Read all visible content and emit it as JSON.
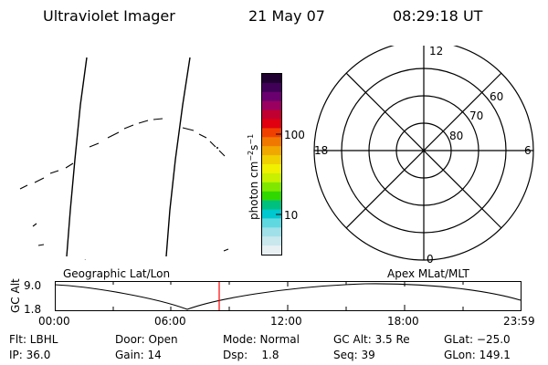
{
  "header": {
    "title": "Ultraviolet Imager",
    "date": "21 May 07",
    "time": "08:29:18 UT"
  },
  "colorbar": {
    "unit_main": "photon cm",
    "unit_exp1": "−2",
    "unit_s": "s",
    "unit_exp2": "−1",
    "tick_100": "100",
    "tick_10": "10",
    "colors": [
      "#200030",
      "#400058",
      "#6a0070",
      "#9a0060",
      "#c00030",
      "#e00010",
      "#f04000",
      "#f07800",
      "#f0a800",
      "#f0d000",
      "#f0f000",
      "#c8f000",
      "#80e800",
      "#30d800",
      "#00c080",
      "#00c8d0",
      "#60d8e0",
      "#a0e0e8",
      "#c8e8ee",
      "#e8f0f4"
    ]
  },
  "polar": {
    "mlt_12": "12",
    "mlt_18": "18",
    "mlt_6": "6",
    "mlt_0": "0",
    "lat_60": "60",
    "lat_70": "70",
    "lat_80": "80"
  },
  "plot": {
    "ylabel": "GC Alt",
    "y_top": "9.0",
    "y_bottom": "1.8",
    "left_label": "Geographic Lat/Lon",
    "right_label": "Apex MLat/MLT",
    "x_ticks": [
      "00:00",
      "06:00",
      "12:00",
      "18:00",
      "23:59"
    ],
    "cursor_fraction": 0.353,
    "cursor_color": "#ff0000"
  },
  "footer": {
    "flt": "Flt: LBHL",
    "ip": "IP: 36.0",
    "door": "Door: Open",
    "gain": "Gain: 14",
    "mode": "Mode: Normal",
    "dsp": "Dsp:    1.8",
    "gcalt": "GC Alt: 3.5 Re",
    "seq": "Seq: 39",
    "glat": "GLat: −25.0",
    "glon": "GLon: 149.1"
  }
}
